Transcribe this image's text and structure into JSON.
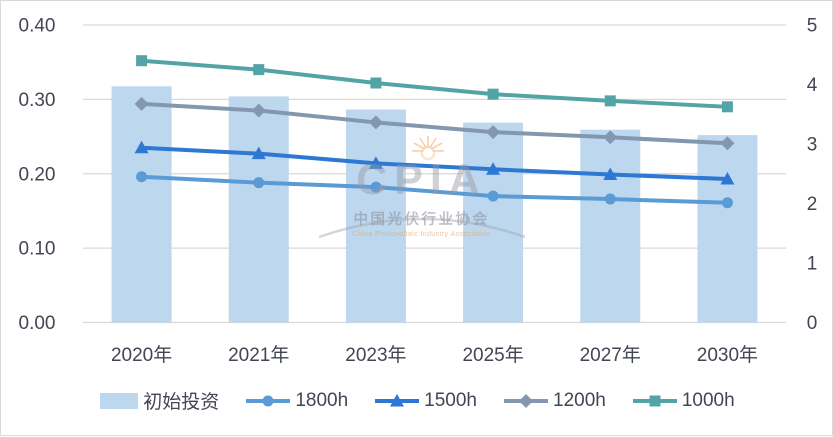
{
  "chart_data": {
    "type": "bar+line combo",
    "title": "",
    "categories": [
      "2020年",
      "2021年",
      "2023年",
      "2025年",
      "2027年",
      "2030年"
    ],
    "bar_series": {
      "name": "初始投资",
      "axis": "right",
      "color": "#BDD7EE",
      "values": [
        3.97,
        3.8,
        3.58,
        3.36,
        3.24,
        3.15
      ]
    },
    "line_series": [
      {
        "name": "1800h",
        "axis": "left",
        "marker": "circle",
        "color": "#5B9BD5",
        "values": [
          0.196,
          0.188,
          0.182,
          0.17,
          0.166,
          0.161
        ]
      },
      {
        "name": "1500h",
        "axis": "left",
        "marker": "triangle",
        "color": "#2D78D3",
        "values": [
          0.235,
          0.227,
          0.214,
          0.206,
          0.199,
          0.193
        ]
      },
      {
        "name": "1200h",
        "axis": "left",
        "marker": "diamond",
        "color": "#8497B0",
        "values": [
          0.294,
          0.285,
          0.269,
          0.256,
          0.249,
          0.241
        ]
      },
      {
        "name": "1000h",
        "axis": "left",
        "marker": "square",
        "color": "#53A4A6",
        "values": [
          0.352,
          0.34,
          0.322,
          0.307,
          0.298,
          0.29
        ]
      }
    ],
    "left_axis": {
      "min": 0,
      "max": 0.4,
      "ticks": [
        "0.40",
        "0.30",
        "0.20",
        "0.10",
        "0.00"
      ],
      "tick_values": [
        0.4,
        0.3,
        0.2,
        0.1,
        0.0
      ]
    },
    "right_axis": {
      "min": 0,
      "max": 5,
      "ticks": [
        "5",
        "4",
        "3",
        "2",
        "1",
        "0"
      ],
      "tick_values": [
        5,
        4,
        3,
        2,
        1,
        0
      ]
    },
    "grid": "horizontal",
    "legend_position": "bottom",
    "legend_order": [
      "初始投资",
      "1800h",
      "1500h",
      "1200h",
      "1000h"
    ],
    "colors": {
      "gridline": "#D9D9D9",
      "axis_text": "#424653",
      "frame_border": "#D9D9D9"
    }
  },
  "watermark": {
    "logo_text": "CPIA",
    "cn": "中国光伏行业协会",
    "en": "China Photovoltaic Industry Association",
    "sun_icon": "sun-rays-icon"
  }
}
